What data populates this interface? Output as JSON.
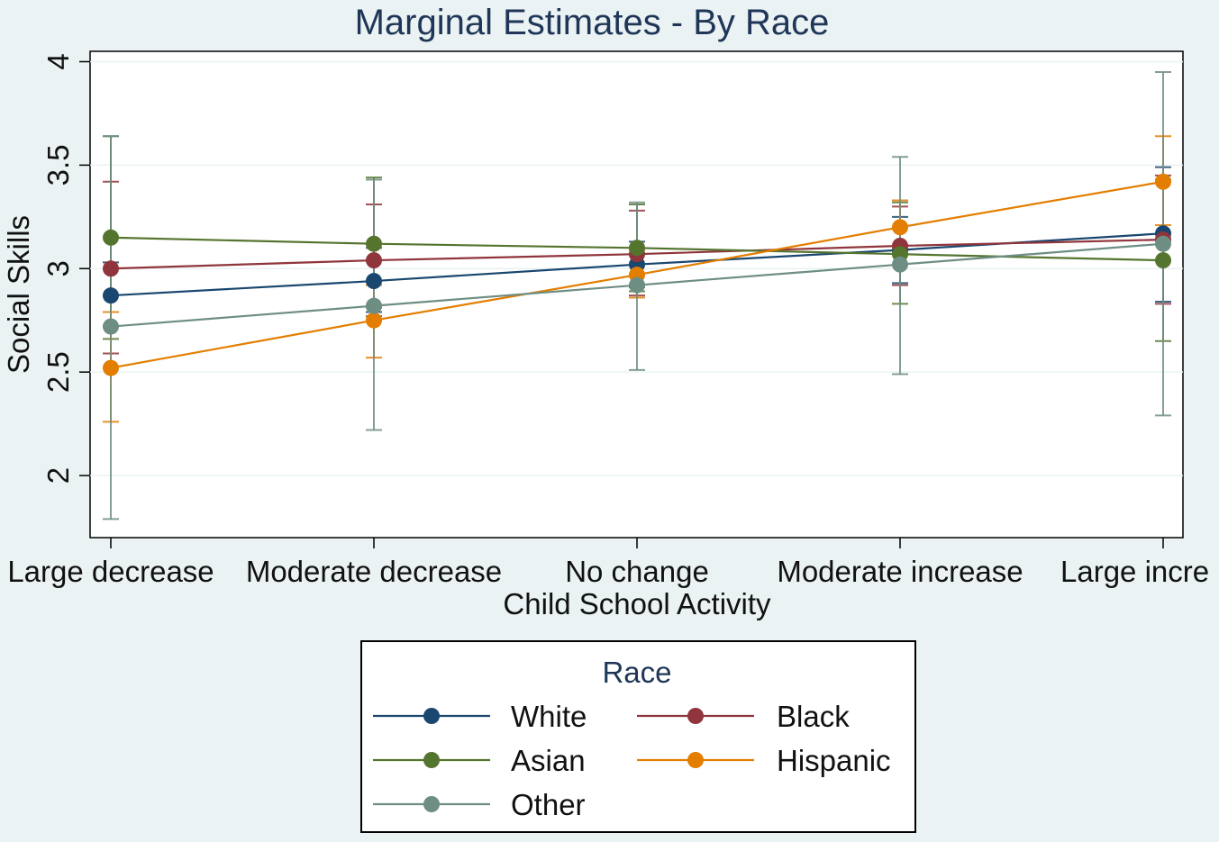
{
  "chart_data": {
    "type": "line",
    "title": "Marginal Estimates - By Race",
    "xlabel": "Child School Activity",
    "ylabel": "Social Skills",
    "categories": [
      "Large decrease",
      "Moderate decrease",
      "No change",
      "Moderate increase",
      "Large incre"
    ],
    "ylim": [
      1.7,
      4.05
    ],
    "yticks": [
      2,
      2.5,
      3,
      3.5,
      4
    ],
    "ytick_labels": [
      "2",
      "2.5",
      "3",
      "3.5",
      "4"
    ],
    "grid": true,
    "legend_title": "Race",
    "legend_position": "bottom",
    "series": [
      {
        "name": "White",
        "color": "#1a476f",
        "values": [
          2.87,
          2.94,
          3.02,
          3.09,
          3.17
        ],
        "ci_low": [
          2.72,
          2.79,
          2.91,
          2.93,
          2.84
        ],
        "ci_high": [
          3.03,
          3.1,
          3.13,
          3.25,
          3.49
        ]
      },
      {
        "name": "Black",
        "color": "#90353b",
        "values": [
          3.0,
          3.04,
          3.07,
          3.11,
          3.14
        ],
        "ci_low": [
          2.59,
          2.77,
          2.87,
          2.92,
          2.83
        ],
        "ci_high": [
          3.42,
          3.31,
          3.28,
          3.3,
          3.45
        ]
      },
      {
        "name": "Asian",
        "color": "#55752f",
        "values": [
          3.15,
          3.12,
          3.1,
          3.07,
          3.04
        ],
        "ci_low": [
          2.66,
          2.81,
          2.89,
          2.83,
          2.65
        ],
        "ci_high": [
          3.64,
          3.44,
          3.31,
          3.32,
          3.43
        ]
      },
      {
        "name": "Hispanic",
        "color": "#e37e00",
        "values": [
          2.52,
          2.75,
          2.97,
          3.2,
          3.42
        ],
        "ci_low": [
          2.26,
          2.57,
          2.86,
          3.08,
          3.21
        ],
        "ci_high": [
          2.79,
          2.92,
          3.09,
          3.33,
          3.64
        ]
      },
      {
        "name": "Other",
        "color": "#6e8e84",
        "values": [
          2.72,
          2.82,
          2.92,
          3.02,
          3.12
        ],
        "ci_low": [
          1.79,
          2.22,
          2.51,
          2.49,
          2.29
        ],
        "ci_high": [
          3.64,
          3.43,
          3.32,
          3.54,
          3.95
        ]
      }
    ]
  }
}
